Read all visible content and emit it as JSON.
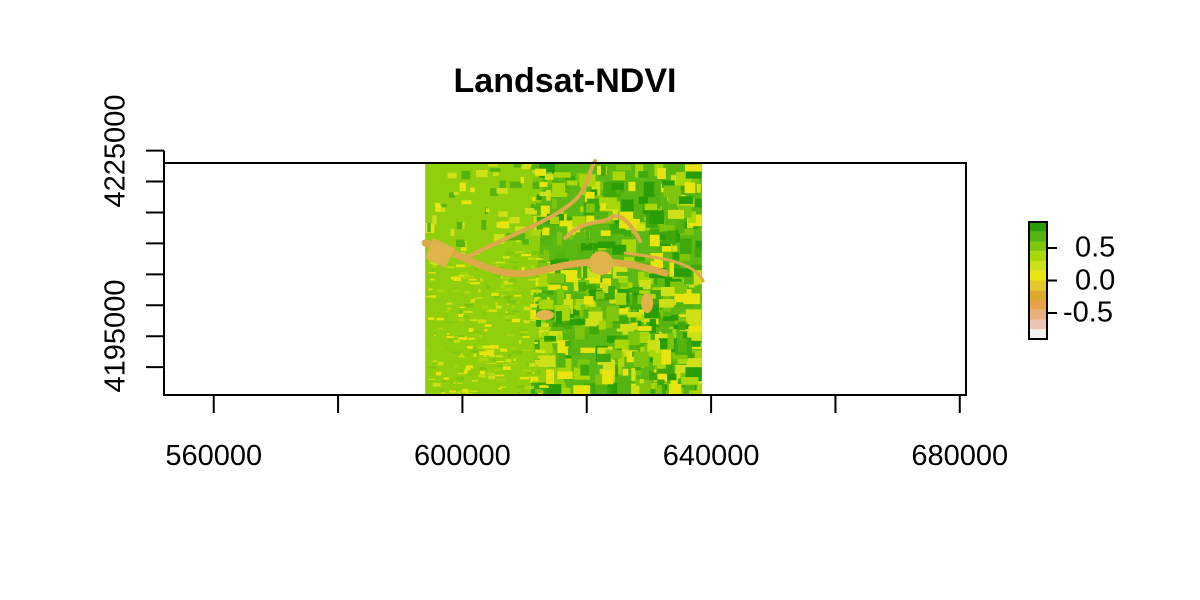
{
  "title": "Landsat-NDVI",
  "x_ticks": [
    {
      "value": 560000,
      "label": "560000"
    },
    {
      "value": 580000,
      "label": ""
    },
    {
      "value": 600000,
      "label": "600000"
    },
    {
      "value": 620000,
      "label": ""
    },
    {
      "value": 640000,
      "label": "640000"
    },
    {
      "value": 660000,
      "label": ""
    },
    {
      "value": 680000,
      "label": "680000"
    }
  ],
  "y_ticks": [
    {
      "value": 4190000,
      "label": ""
    },
    {
      "value": 4195000,
      "label": "4195000"
    },
    {
      "value": 4200000,
      "label": ""
    },
    {
      "value": 4205000,
      "label": ""
    },
    {
      "value": 4210000,
      "label": ""
    },
    {
      "value": 4215000,
      "label": ""
    },
    {
      "value": 4220000,
      "label": ""
    },
    {
      "value": 4225000,
      "label": "4225000"
    }
  ],
  "extent": {
    "xmin": 552000,
    "xmax": 681000,
    "ymin": 4185500,
    "ymax": 4223000
  },
  "raster_extent": {
    "xmin": 594000,
    "xmax": 638500,
    "ymin": 4185500,
    "ymax": 4223000
  },
  "legend": {
    "min": -0.9,
    "max": 0.9,
    "labels": [
      {
        "value": 0.5,
        "label": "0.5"
      },
      {
        "value": 0.0,
        "label": "0.0"
      },
      {
        "value": -0.5,
        "label": "-0.5"
      }
    ],
    "bins": [
      {
        "from": -0.9,
        "to": -0.75,
        "color": "#f2f2f2"
      },
      {
        "from": -0.75,
        "to": -0.6,
        "color": "#eec4b9"
      },
      {
        "from": -0.6,
        "to": -0.45,
        "color": "#e8b07e"
      },
      {
        "from": -0.45,
        "to": -0.3,
        "color": "#e6a24a"
      },
      {
        "from": -0.3,
        "to": -0.15,
        "color": "#dcaa2a"
      },
      {
        "from": -0.15,
        "to": 0.0,
        "color": "#e2c82a"
      },
      {
        "from": 0.0,
        "to": 0.15,
        "color": "#e8e410"
      },
      {
        "from": 0.15,
        "to": 0.3,
        "color": "#cde018"
      },
      {
        "from": 0.3,
        "to": 0.45,
        "color": "#a9d80a"
      },
      {
        "from": 0.45,
        "to": 0.6,
        "color": "#7ec60e"
      },
      {
        "from": 0.6,
        "to": 0.75,
        "color": "#56b410"
      },
      {
        "from": 0.75,
        "to": 0.9,
        "color": "#2a9e06"
      }
    ]
  }
}
